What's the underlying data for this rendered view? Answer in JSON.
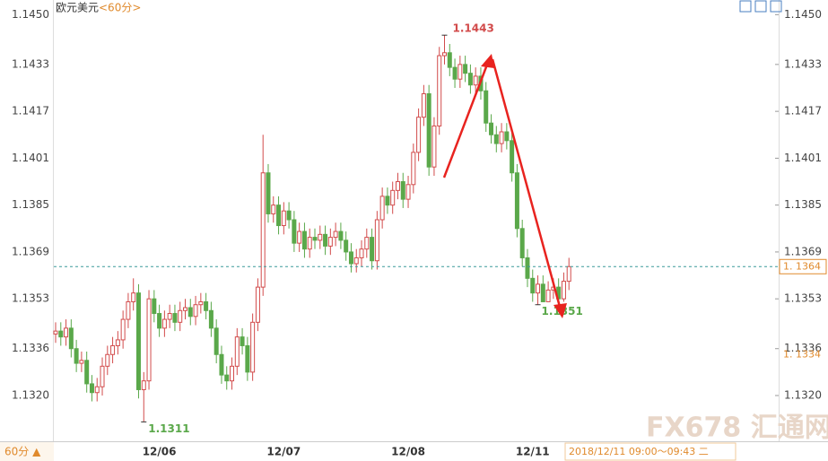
{
  "chart_data": {
    "type": "candlestick",
    "title": "欧元美元",
    "period": "<60分>",
    "bottom_period": "60分 ▲",
    "time_range": "2018/12/11 09:00～09:43 二",
    "watermark": "FX678 汇通网",
    "up_color": "#d24b4b",
    "down_color": "#5aa84a",
    "ylim": [
      1.1305,
      1.1455
    ],
    "yticks": [
      {
        "value": 1.145,
        "label": "1.1450"
      },
      1.1433,
      1.1417,
      1.1401,
      1.1385,
      1.1369,
      1.1353,
      1.1336,
      {
        "value": 1.132,
        "label": "1.1320"
      }
    ],
    "last_price": {
      "value": 1.1364,
      "label": "1. 1364"
    },
    "marker_price": {
      "value": 1.1334,
      "label": "1. 1334"
    },
    "max_label": 1.1443,
    "min_label": 1.1311,
    "recent_low_label": 1.1351,
    "categories": [
      null,
      null,
      null,
      null,
      null,
      null,
      null,
      null,
      null,
      null,
      null,
      null,
      null,
      null,
      null,
      null,
      null,
      null,
      null,
      null,
      "12/06",
      null,
      null,
      null,
      null,
      null,
      null,
      null,
      null,
      null,
      null,
      null,
      null,
      null,
      null,
      null,
      null,
      null,
      null,
      null,
      null,
      null,
      null,
      null,
      "12/07",
      null,
      null,
      null,
      null,
      null,
      null,
      null,
      null,
      null,
      null,
      null,
      null,
      null,
      null,
      null,
      null,
      null,
      null,
      null,
      null,
      null,
      null,
      null,
      "12/08",
      null,
      null,
      null,
      null,
      null,
      null,
      null,
      null,
      null,
      null,
      null,
      null,
      null,
      null,
      null,
      null,
      null,
      null,
      null,
      null,
      null,
      null,
      null,
      "12/11",
      null,
      null,
      null,
      null,
      null,
      null,
      null
    ],
    "open": [
      1.1341,
      1.1342,
      1.134,
      1.1343,
      1.1336,
      1.1331,
      1.1332,
      1.1324,
      1.1321,
      1.1323,
      1.133,
      1.1334,
      1.1337,
      1.1339,
      1.1346,
      1.1352,
      1.1355,
      1.1322,
      1.1325,
      1.1353,
      1.1348,
      1.1343,
      1.1346,
      1.1348,
      1.1345,
      1.1349,
      1.135,
      1.1347,
      1.1351,
      1.1352,
      1.1349,
      1.1343,
      1.1334,
      1.1327,
      1.1325,
      1.133,
      1.134,
      1.1337,
      1.1328,
      1.1345,
      1.1357,
      1.1396,
      1.1382,
      1.1385,
      1.1378,
      1.1383,
      1.138,
      1.1372,
      1.1376,
      1.137,
      1.1374,
      1.1373,
      1.1375,
      1.1371,
      1.1374,
      1.1376,
      1.1373,
      1.1369,
      1.1365,
      1.1367,
      1.137,
      1.1374,
      1.1366,
      1.138,
      1.1388,
      1.1385,
      1.139,
      1.1393,
      1.1387,
      1.1392,
      1.1403,
      1.1415,
      1.1423,
      1.1398,
      1.1412,
      1.1436,
      1.1437,
      1.1432,
      1.1428,
      1.1433,
      1.143,
      1.1426,
      1.1429,
      1.1424,
      1.1413,
      1.1409,
      1.1406,
      1.141,
      1.1407,
      1.1396,
      1.1377,
      1.1367,
      1.136,
      1.1355,
      1.1358,
      1.1352,
      1.1356,
      1.1357,
      1.1353,
      1.1359
    ],
    "high": [
      1.1345,
      1.1345,
      1.1346,
      1.1346,
      1.1339,
      1.1335,
      1.1335,
      1.1327,
      1.1326,
      1.1333,
      1.1337,
      1.134,
      1.1342,
      1.1349,
      1.1355,
      1.136,
      1.1358,
      1.1328,
      1.1356,
      1.1356,
      1.1351,
      1.1349,
      1.1351,
      1.1351,
      1.1352,
      1.1353,
      1.1353,
      1.1354,
      1.1355,
      1.1355,
      1.1352,
      1.1346,
      1.1337,
      1.133,
      1.1333,
      1.1343,
      1.1343,
      1.134,
      1.1348,
      1.136,
      1.1409,
      1.1399,
      1.1388,
      1.1388,
      1.1386,
      1.1386,
      1.1383,
      1.1379,
      1.1379,
      1.1377,
      1.1377,
      1.1378,
      1.1378,
      1.1377,
      1.1379,
      1.1379,
      1.1376,
      1.1372,
      1.137,
      1.1373,
      1.1377,
      1.1377,
      1.1383,
      1.1391,
      1.1391,
      1.1393,
      1.1396,
      1.1396,
      1.1395,
      1.1406,
      1.1418,
      1.1426,
      1.1426,
      1.1415,
      1.1439,
      1.1443,
      1.144,
      1.1435,
      1.1436,
      1.1436,
      1.1433,
      1.1432,
      1.1432,
      1.1427,
      1.1416,
      1.1412,
      1.1413,
      1.1413,
      1.141,
      1.1399,
      1.138,
      1.137,
      1.1363,
      1.1361,
      1.1361,
      1.1359,
      1.136,
      1.136,
      1.1362,
      1.1367
    ],
    "low": [
      1.1338,
      1.1337,
      1.1337,
      1.1333,
      1.1328,
      1.1328,
      1.1321,
      1.1318,
      1.1318,
      1.132,
      1.1327,
      1.1331,
      1.1334,
      1.1336,
      1.1343,
      1.1349,
      1.1319,
      1.1311,
      1.1322,
      1.1345,
      1.134,
      1.134,
      1.1343,
      1.1342,
      1.1342,
      1.1346,
      1.1344,
      1.1344,
      1.1348,
      1.1346,
      1.134,
      1.1331,
      1.1324,
      1.1322,
      1.1322,
      1.1327,
      1.1334,
      1.1325,
      1.1325,
      1.1342,
      1.1354,
      1.1379,
      1.1379,
      1.1375,
      1.1375,
      1.1377,
      1.1369,
      1.1369,
      1.1367,
      1.1367,
      1.137,
      1.137,
      1.1368,
      1.1368,
      1.1371,
      1.137,
      1.1366,
      1.1362,
      1.1362,
      1.1364,
      1.1367,
      1.1363,
      1.1363,
      1.1377,
      1.1382,
      1.1382,
      1.1387,
      1.1384,
      1.1384,
      1.1389,
      1.14,
      1.1412,
      1.1395,
      1.1395,
      1.1409,
      1.1433,
      1.1429,
      1.1425,
      1.1425,
      1.1427,
      1.1423,
      1.1423,
      1.1421,
      1.141,
      1.1406,
      1.1403,
      1.1403,
      1.1404,
      1.1393,
      1.1374,
      1.1364,
      1.1357,
      1.1352,
      1.1351,
      1.1352,
      1.1352,
      1.1353,
      1.1352,
      1.1352,
      1.1356
    ],
    "close": [
      1.1342,
      1.134,
      1.1343,
      1.1336,
      1.1331,
      1.1332,
      1.1324,
      1.1321,
      1.1323,
      1.133,
      1.1334,
      1.1337,
      1.1339,
      1.1346,
      1.1352,
      1.1355,
      1.1322,
      1.1325,
      1.1353,
      1.1348,
      1.1343,
      1.1346,
      1.1348,
      1.1345,
      1.1349,
      1.135,
      1.1347,
      1.1351,
      1.1352,
      1.1349,
      1.1343,
      1.1334,
      1.1327,
      1.1325,
      1.133,
      1.134,
      1.1337,
      1.1328,
      1.1345,
      1.1357,
      1.1396,
      1.1382,
      1.1385,
      1.1378,
      1.1383,
      1.138,
      1.1372,
      1.1376,
      1.137,
      1.1374,
      1.1373,
      1.1375,
      1.1371,
      1.1374,
      1.1376,
      1.1373,
      1.1369,
      1.1365,
      1.1367,
      1.137,
      1.1374,
      1.1366,
      1.138,
      1.1388,
      1.1385,
      1.139,
      1.1393,
      1.1387,
      1.1392,
      1.1403,
      1.1415,
      1.1423,
      1.1398,
      1.1412,
      1.1436,
      1.1437,
      1.1432,
      1.1428,
      1.1433,
      1.143,
      1.1426,
      1.1429,
      1.1424,
      1.1413,
      1.1409,
      1.1406,
      1.141,
      1.1407,
      1.1396,
      1.1377,
      1.1367,
      1.136,
      1.1355,
      1.1358,
      1.1352,
      1.1356,
      1.1357,
      1.1353,
      1.1359,
      1.1364
    ]
  }
}
